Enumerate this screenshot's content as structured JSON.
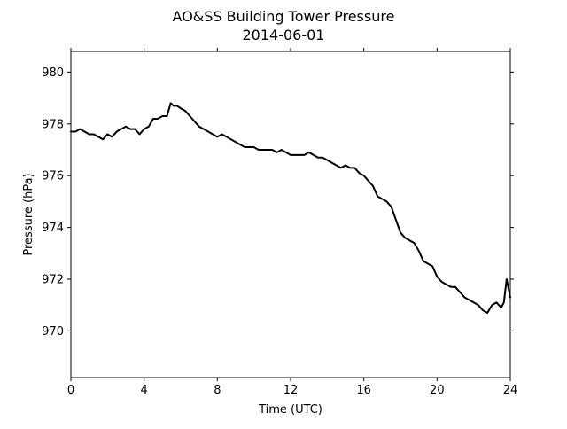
{
  "chart_data": {
    "type": "line",
    "title": "AO&SS Building Tower Pressure",
    "subtitle": "2014-06-01",
    "xlabel": "Time (UTC)",
    "ylabel": "Pressure (hPa)",
    "xlim": [
      0,
      24
    ],
    "ylim": [
      968.2,
      980.8
    ],
    "xticks": [
      0,
      4,
      8,
      12,
      16,
      20,
      24
    ],
    "yticks": [
      970,
      972,
      974,
      976,
      978,
      980
    ],
    "grid": false,
    "line_color": "#000000",
    "series": [
      {
        "x": [
          0,
          0.25,
          0.5,
          0.75,
          1.0,
          1.25,
          1.5,
          1.75,
          2.0,
          2.25,
          2.5,
          2.75,
          3.0,
          3.25,
          3.5,
          3.75,
          4.0,
          4.25,
          4.5,
          4.75,
          5.0,
          5.25,
          5.45,
          5.6,
          5.8,
          6.0,
          6.25,
          6.5,
          6.75,
          7.0,
          7.25,
          7.5,
          7.75,
          8.0,
          8.25,
          8.5,
          8.75,
          9.0,
          9.25,
          9.5,
          9.75,
          10.0,
          10.25,
          10.5,
          10.75,
          11.0,
          11.25,
          11.5,
          11.75,
          12.0,
          12.25,
          12.5,
          12.75,
          13.0,
          13.25,
          13.5,
          13.75,
          14.0,
          14.25,
          14.5,
          14.75,
          15.0,
          15.25,
          15.5,
          15.75,
          16.0,
          16.25,
          16.5,
          16.75,
          17.0,
          17.25,
          17.5,
          17.75,
          18.0,
          18.25,
          18.5,
          18.75,
          19.0,
          19.25,
          19.5,
          19.75,
          20.0,
          20.25,
          20.5,
          20.75,
          21.0,
          21.25,
          21.5,
          21.75,
          22.0,
          22.25,
          22.5,
          22.75,
          23.0,
          23.25,
          23.5,
          23.65,
          23.8,
          24.0
        ],
        "y": [
          977.7,
          977.7,
          977.8,
          977.7,
          977.6,
          977.6,
          977.5,
          977.4,
          977.6,
          977.5,
          977.7,
          977.8,
          977.9,
          977.8,
          977.8,
          977.6,
          977.8,
          977.9,
          978.2,
          978.2,
          978.3,
          978.3,
          978.8,
          978.7,
          978.7,
          978.6,
          978.5,
          978.3,
          978.1,
          977.9,
          977.8,
          977.7,
          977.6,
          977.5,
          977.6,
          977.5,
          977.4,
          977.3,
          977.2,
          977.1,
          977.1,
          977.1,
          977.0,
          977.0,
          977.0,
          977.0,
          976.9,
          977.0,
          976.9,
          976.8,
          976.8,
          976.8,
          976.8,
          976.9,
          976.8,
          976.7,
          976.7,
          976.6,
          976.5,
          976.4,
          976.3,
          976.4,
          976.3,
          976.3,
          976.1,
          976.0,
          975.8,
          975.6,
          975.2,
          975.1,
          975.0,
          974.8,
          974.3,
          973.8,
          973.6,
          973.5,
          973.4,
          973.1,
          972.7,
          972.6,
          972.5,
          972.1,
          971.9,
          971.8,
          971.7,
          971.7,
          971.5,
          971.3,
          971.2,
          971.1,
          971.0,
          970.8,
          970.7,
          971.0,
          971.1,
          970.9,
          971.1,
          972.0,
          971.3
        ]
      }
    ]
  }
}
